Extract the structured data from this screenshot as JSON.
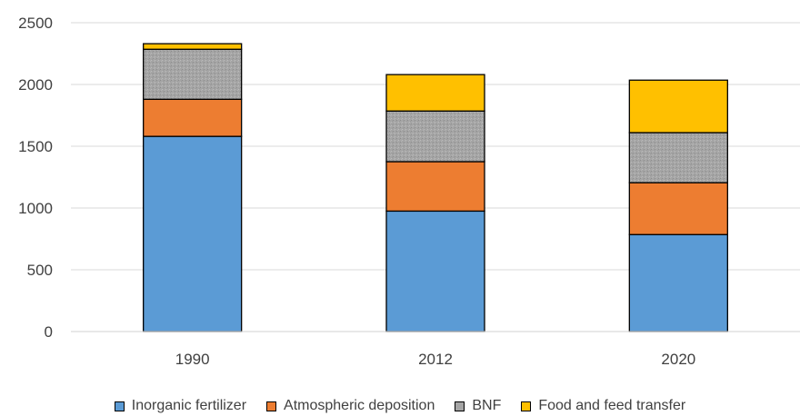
{
  "chart_data": {
    "type": "bar",
    "stacked": true,
    "title": "",
    "xlabel": "",
    "ylabel": "",
    "categories": [
      "1990",
      "2012",
      "2020"
    ],
    "ylim": [
      0,
      2500
    ],
    "yticks": [
      0,
      500,
      1000,
      1500,
      2000,
      2500
    ],
    "grid": true,
    "legend_position": "bottom",
    "series": [
      {
        "name": "Inorganic fertilizer",
        "values": [
          1580,
          975,
          785
        ],
        "color": "#5b9bd5"
      },
      {
        "name": "Atmospheric deposition",
        "values": [
          300,
          400,
          420
        ],
        "color": "#ed7d31"
      },
      {
        "name": "BNF",
        "values": [
          405,
          410,
          405
        ],
        "color": "#a5a5a5"
      },
      {
        "name": "Food and feed transfer",
        "values": [
          45,
          295,
          425
        ],
        "color": "#ffc000"
      }
    ]
  }
}
